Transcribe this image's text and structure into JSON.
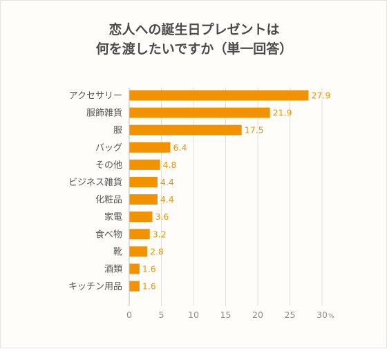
{
  "chart_data": {
    "type": "bar",
    "orientation": "horizontal",
    "title_lines": [
      "恋人への誕生日プレゼントは",
      "何を渡したいですか（単一回答）"
    ],
    "categories": [
      "アクセサリー",
      "服飾雑貨",
      "服",
      "バッグ",
      "その他",
      "ビジネス雑貨",
      "化粧品",
      "家電",
      "食べ物",
      "靴",
      "酒類",
      "キッチン用品"
    ],
    "values": [
      27.9,
      21.9,
      17.5,
      6.4,
      4.8,
      4.4,
      4.4,
      3.6,
      3.2,
      2.8,
      1.6,
      1.6
    ],
    "value_labels": [
      "27.9",
      "21.9",
      "17.5",
      "6.4",
      "4.8",
      "4.4",
      "4.4",
      "3.6",
      "3.2",
      "2.8",
      "1.6",
      "1.6"
    ],
    "xlim": [
      0,
      30
    ],
    "xticks": [
      "0",
      "5",
      "10",
      "15",
      "20",
      "25",
      "30"
    ],
    "x_unit": "%",
    "grid": true,
    "colors": {
      "bar": "#f39200",
      "value_label": "#f39200",
      "grid": "#e3e0da",
      "axis": "#bdbdbd",
      "category_label": "#555555",
      "tick_label": "#8a8a8a"
    }
  }
}
